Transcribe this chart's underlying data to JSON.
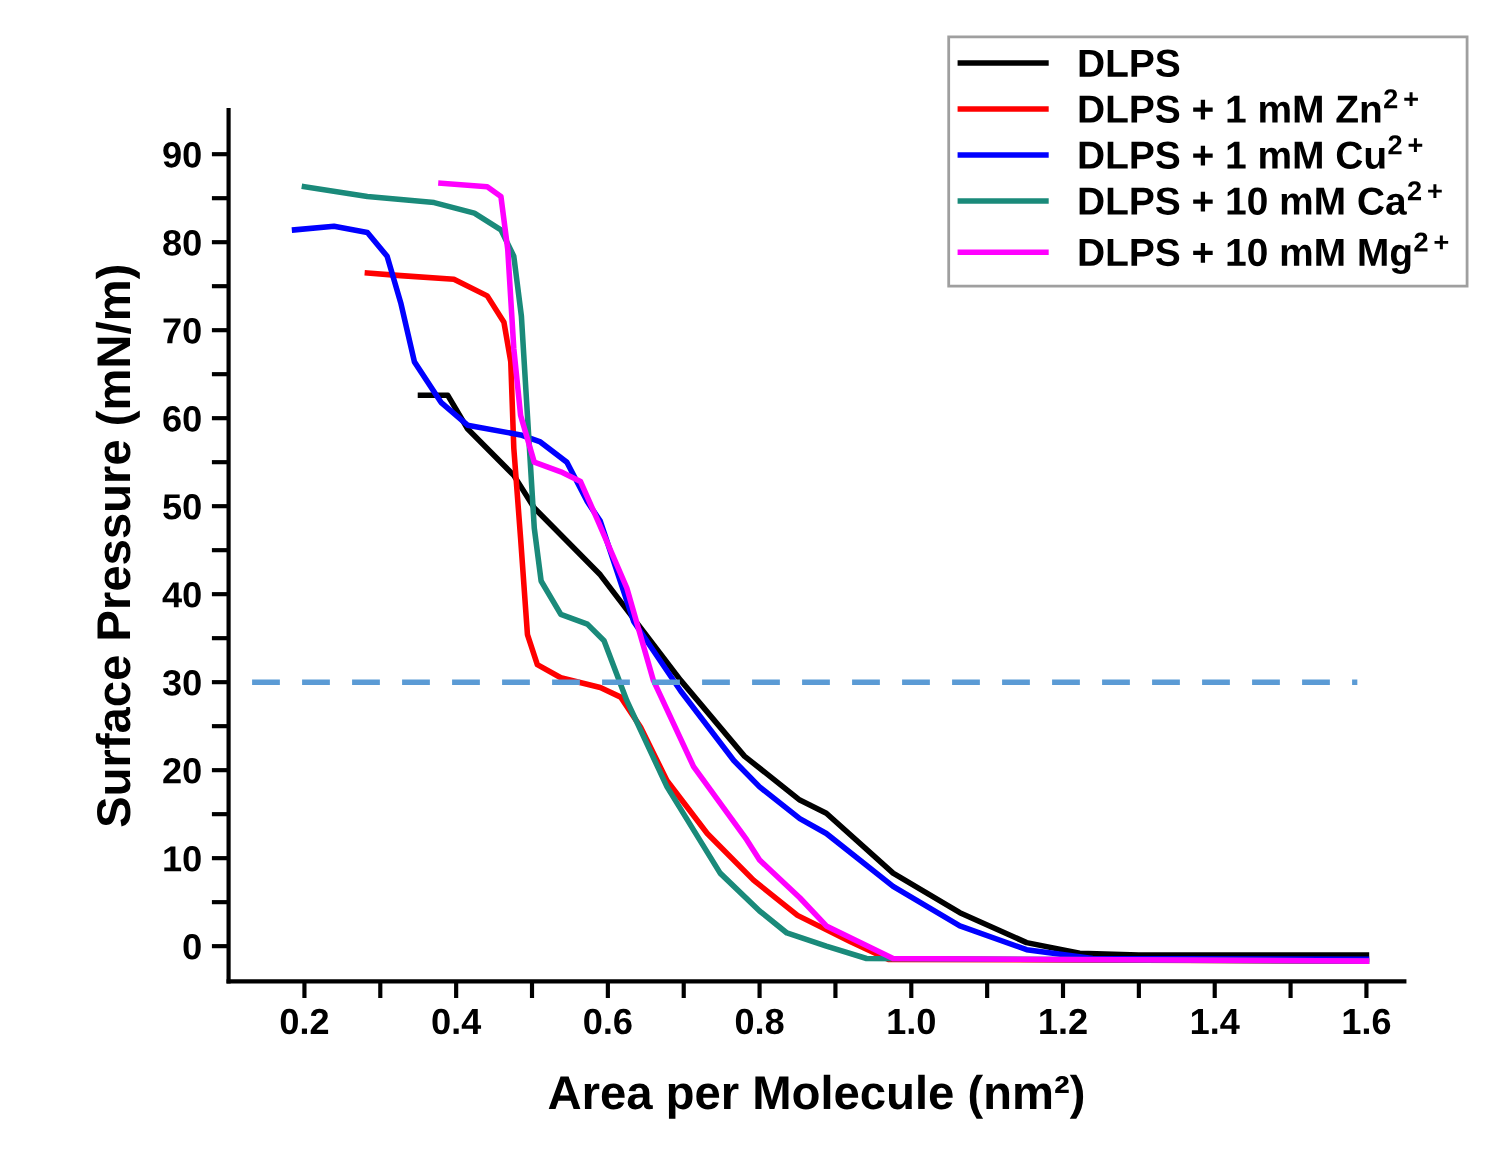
{
  "chart_data": {
    "type": "line",
    "xlabel": "Area per Molecule (nm²)",
    "ylabel": "Surface Pressure (mN/m)",
    "xlim": [
      0.1,
      1.65
    ],
    "ylim": [
      -4,
      95
    ],
    "xticks": [
      0.2,
      {
        "value": 0.3,
        "label": null
      },
      0.4,
      {
        "value": 0.5,
        "label": null
      },
      0.6,
      {
        "value": 0.7,
        "label": null
      },
      0.8,
      {
        "value": 0.9,
        "label": null
      },
      {
        "value": 1.0,
        "label": "1.0"
      },
      {
        "value": 1.1,
        "label": null
      },
      1.2,
      {
        "value": 1.3,
        "label": null
      },
      1.4,
      {
        "value": 1.5,
        "label": null
      },
      1.6
    ],
    "yticks": [
      0,
      {
        "value": 5,
        "label": null
      },
      10,
      {
        "value": 15,
        "label": null
      },
      20,
      {
        "value": 25,
        "label": null
      },
      30,
      {
        "value": 35,
        "label": null
      },
      40,
      {
        "value": 45,
        "label": null
      },
      50,
      {
        "value": 55,
        "label": null
      },
      60,
      {
        "value": 65,
        "label": null
      },
      70,
      {
        "value": 75,
        "label": null
      },
      80,
      {
        "value": 85,
        "label": null
      },
      90
    ],
    "legend": "top right",
    "grid": false,
    "ref_lines": [
      {
        "axis": "y",
        "value": 30,
        "label": null,
        "color": "#5b9bd5",
        "line_style": "dashed"
      }
    ],
    "series": [
      {
        "name": "DLPS",
        "color": "#000000",
        "x": [
          0.353,
          0.389,
          0.415,
          0.476,
          0.503,
          0.59,
          0.696,
          0.78,
          0.853,
          0.888,
          0.976,
          1.064,
          1.152,
          1.222,
          1.3,
          1.6
        ],
        "values": [
          62.6,
          62.6,
          58.8,
          53.5,
          49.8,
          42.2,
          30.2,
          21.6,
          16.6,
          15.1,
          8.3,
          3.8,
          0.4,
          -0.8,
          -1.0,
          -1.0
        ]
      },
      {
        "name": "DLPS + 1 mM Zn$^{2+}$",
        "color": "#ff0000",
        "x": [
          0.283,
          0.327,
          0.397,
          0.441,
          0.463,
          0.472,
          0.476,
          0.485,
          0.494,
          0.507,
          0.538,
          0.59,
          0.617,
          0.643,
          0.678,
          0.731,
          0.792,
          0.85,
          0.92,
          0.97,
          1.6
        ],
        "values": [
          76.5,
          76.2,
          75.8,
          73.9,
          70.9,
          66.4,
          56.6,
          46.3,
          35.4,
          32.0,
          30.5,
          29.4,
          28.3,
          24.9,
          18.8,
          12.8,
          7.5,
          3.5,
          0.5,
          -1.5,
          -1.7
        ]
      },
      {
        "name": "DLPS + 1 mM Cu$^{2+}$",
        "color": "#0000ff",
        "x": [
          0.187,
          0.239,
          0.283,
          0.309,
          0.327,
          0.345,
          0.38,
          0.415,
          0.485,
          0.511,
          0.546,
          0.573,
          0.59,
          0.634,
          0.696,
          0.766,
          0.8,
          0.853,
          0.888,
          0.976,
          1.064,
          1.152,
          1.239,
          1.6
        ],
        "values": [
          81.4,
          81.8,
          81.1,
          78.4,
          73.1,
          66.4,
          61.8,
          59.2,
          58.1,
          57.3,
          55.0,
          50.5,
          48.3,
          36.9,
          29.0,
          21.1,
          18.1,
          14.5,
          12.8,
          6.8,
          2.3,
          -0.4,
          -1.4,
          -1.5
        ]
      },
      {
        "name": "DLPS + 10 mM Ca$^{2+}$",
        "color": "#1a8a7a",
        "x": [
          0.2,
          0.283,
          0.371,
          0.424,
          0.459,
          0.476,
          0.486,
          0.494,
          0.503,
          0.512,
          0.538,
          0.573,
          0.595,
          0.625,
          0.678,
          0.748,
          0.8,
          0.836,
          0.888,
          0.941,
          1.6
        ],
        "values": [
          86.3,
          85.2,
          84.5,
          83.3,
          81.4,
          78.4,
          71.6,
          60.3,
          47.5,
          41.5,
          37.7,
          36.6,
          34.7,
          27.9,
          18.1,
          8.3,
          4.0,
          1.5,
          0.0,
          -1.4,
          -1.7
        ]
      },
      {
        "name": "DLPS + 10 mM Mg$^{2+}$",
        "color": "#ff00ff",
        "x": [
          0.38,
          0.441,
          0.459,
          0.468,
          0.476,
          0.485,
          0.503,
          0.538,
          0.564,
          0.586,
          0.625,
          0.66,
          0.713,
          0.783,
          0.8,
          0.853,
          0.888,
          0.976,
          1.6
        ],
        "values": [
          86.7,
          86.3,
          85.2,
          79.2,
          67.9,
          60.3,
          55.0,
          53.9,
          52.8,
          48.5,
          40.7,
          30.2,
          20.4,
          12.1,
          9.8,
          5.5,
          2.3,
          -1.4,
          -1.7
        ]
      }
    ]
  }
}
